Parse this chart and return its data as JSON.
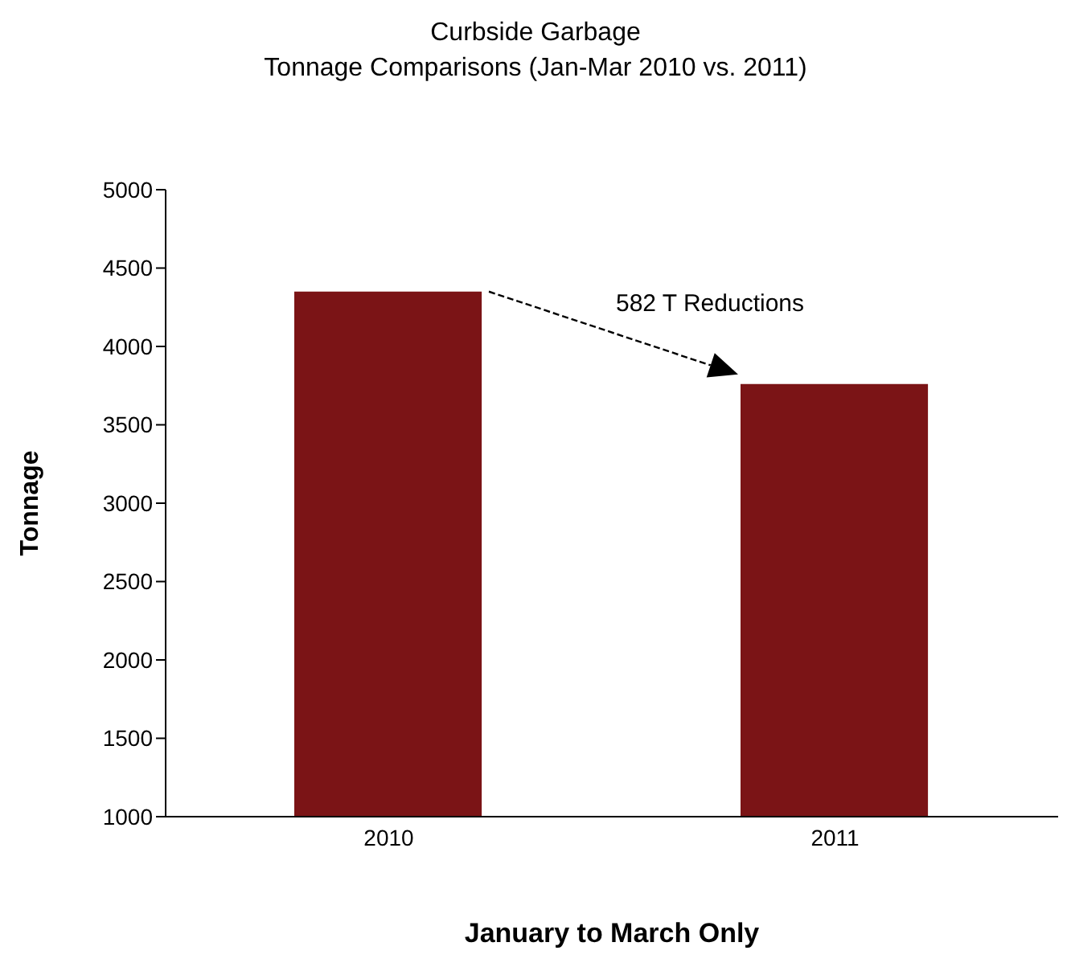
{
  "chart_data": {
    "type": "bar",
    "title": "Curbside Garbage\nTonnage Comparisons (Jan-Mar 2010 vs. 2011)",
    "xlabel": "January to  March Only",
    "ylabel": "Tonnage",
    "categories": [
      "2010",
      "2011"
    ],
    "values": [
      4350,
      3760
    ],
    "color": "#7b1416",
    "ylim": [
      1000,
      5000
    ],
    "yticks": [
      1000,
      1500,
      2000,
      2500,
      3000,
      3500,
      4000,
      4500,
      5000
    ],
    "grid": false,
    "annotations": [
      "582 T Reductions"
    ]
  }
}
